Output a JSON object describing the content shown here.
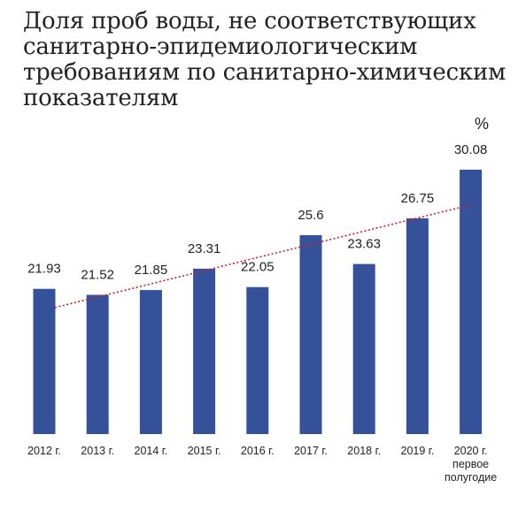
{
  "title": {
    "lines": [
      "Доля проб воды, не соответствующих",
      "санитарно-эпидемиологическим",
      "требованиям по санитарно-химическим",
      "показателям"
    ]
  },
  "chart_data": {
    "type": "bar",
    "title": "Доля проб воды, не соответствующих санитарно-эпидемиологическим требованиям по санитарно-химическим показателям",
    "unit": "%",
    "categories": [
      [
        "2012 г."
      ],
      [
        "2013 г."
      ],
      [
        "2014 г."
      ],
      [
        "2015 г."
      ],
      [
        "2016 г."
      ],
      [
        "2017 г."
      ],
      [
        "2018 г."
      ],
      [
        "2019 г."
      ],
      [
        "2020 г.",
        "первое",
        "полугодие"
      ]
    ],
    "values": [
      21.93,
      21.52,
      21.85,
      23.31,
      22.05,
      25.6,
      23.63,
      26.75,
      30.08
    ],
    "value_labels": [
      "21.93",
      "21.52",
      "21.85",
      "23.31",
      "22.05",
      "25.6",
      "23.63",
      "26.75",
      "30.08"
    ],
    "ylim": [
      12,
      30.8
    ],
    "bar_color": "#34519a",
    "trendline": {
      "type": "linear",
      "style": "dotted",
      "color": "#cc1f2a"
    },
    "grid": false
  }
}
